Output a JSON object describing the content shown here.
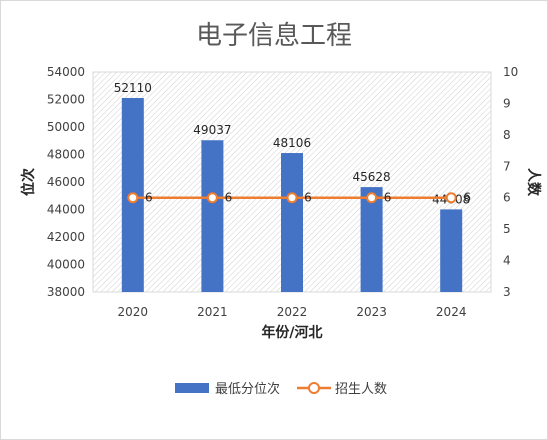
{
  "chart_data": {
    "type": "bar+line",
    "title": "电子信息工程",
    "xlabel": "年份/河北",
    "ylabel_left": "位次",
    "ylabel_right": "人数",
    "categories": [
      "2020",
      "2021",
      "2022",
      "2023",
      "2024"
    ],
    "series": [
      {
        "name": "最低分位次",
        "type": "bar",
        "axis": "left",
        "values": [
          52110,
          49037,
          48106,
          45628,
          44008
        ]
      },
      {
        "name": "招生人数",
        "type": "line",
        "axis": "right",
        "values": [
          6,
          6,
          6,
          6,
          6
        ]
      }
    ],
    "ylim_left": [
      38000,
      54000
    ],
    "yticks_left": [
      38000,
      40000,
      42000,
      44000,
      46000,
      48000,
      50000,
      52000,
      54000
    ],
    "ylim_right": [
      3,
      10
    ],
    "yticks_right": [
      3,
      4,
      5,
      6,
      7,
      8,
      9,
      10
    ],
    "grid": false,
    "legend_position": "bottom",
    "colors": {
      "bar": "#4472c4",
      "line": "#ed7d31",
      "marker_fill": "#ffffff"
    }
  }
}
